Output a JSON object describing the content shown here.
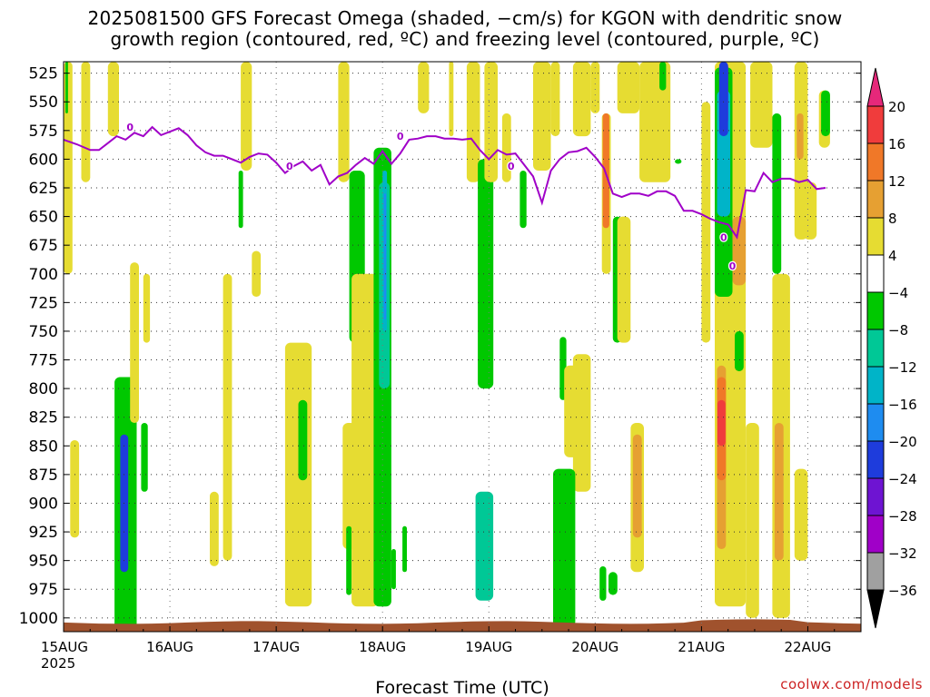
{
  "title_line1": "2025081500 GFS Forecast Omega (shaded, −cm/s) for KGON with dendritic snow",
  "title_line2": "growth region (contoured, red, ºC) and freezing level (contoured, purple, ºC)",
  "credit": "coolwx.com/models",
  "chart_data": {
    "type": "heatmap",
    "title": "2025081500 GFS Forecast Omega (shaded, −cm/s) for KGON with dendritic snow growth region (contoured, red, ºC) and freezing level (contoured, purple, ºC)",
    "xlabel": "Forecast Time (UTC)",
    "ylabel": "",
    "x_ticks": [
      "15AUG\n2025",
      "16AUG",
      "17AUG",
      "18AUG",
      "19AUG",
      "20AUG",
      "21AUG",
      "22AUG"
    ],
    "x_tick_labels": [
      "15AUG",
      "16AUG",
      "17AUG",
      "18AUG",
      "19AUG",
      "20AUG",
      "21AUG",
      "22AUG"
    ],
    "x_year_label": "2025",
    "x_range_hours": [
      0,
      180
    ],
    "y_ticks": [
      525,
      550,
      575,
      600,
      625,
      650,
      675,
      700,
      725,
      750,
      775,
      800,
      825,
      850,
      875,
      900,
      925,
      950,
      975,
      1000
    ],
    "y_range_hPa": [
      515,
      1012
    ],
    "grid": true,
    "colorbar": {
      "labels": [
        "20",
        "16",
        "12",
        "8",
        "4",
        "−4",
        "−8",
        "−12",
        "−16",
        "−20",
        "−24",
        "−28",
        "−32",
        "−36"
      ],
      "bins": [
        {
          "from": 16,
          "to": 20,
          "color": "#f03c3c"
        },
        {
          "from": 12,
          "to": 16,
          "color": "#f07828"
        },
        {
          "from": 8,
          "to": 12,
          "color": "#e6a032"
        },
        {
          "from": 4,
          "to": 8,
          "color": "#e6dc32"
        },
        {
          "from": -4,
          "to": 4,
          "color": "#ffffff"
        },
        {
          "from": -8,
          "to": -4,
          "color": "#00c800"
        },
        {
          "from": -12,
          "to": -8,
          "color": "#00c896"
        },
        {
          "from": -16,
          "to": -12,
          "color": "#00b4c8"
        },
        {
          "from": -20,
          "to": -16,
          "color": "#1e8cf0"
        },
        {
          "from": -24,
          "to": -20,
          "color": "#1e3cdc"
        },
        {
          "from": -28,
          "to": -24,
          "color": "#6e14d2"
        },
        {
          "from": -32,
          "to": -28,
          "color": "#a000c8"
        },
        {
          "from": -36,
          "to": -32,
          "color": "#a0a0a0"
        }
      ],
      "top_arrow_color": "#e6287a",
      "bottom_arrow_color": "#000000"
    },
    "freezing_level": {
      "color": "#a000c8",
      "label": "0",
      "points": [
        [
          0,
          583
        ],
        [
          3,
          587
        ],
        [
          6,
          592
        ],
        [
          8,
          592
        ],
        [
          10,
          586
        ],
        [
          12,
          580
        ],
        [
          14,
          583
        ],
        [
          16,
          577
        ],
        [
          18,
          580
        ],
        [
          20,
          572
        ],
        [
          22,
          579
        ],
        [
          24,
          576
        ],
        [
          26,
          573
        ],
        [
          28,
          579
        ],
        [
          30,
          588
        ],
        [
          32,
          594
        ],
        [
          34,
          597
        ],
        [
          36,
          597
        ],
        [
          38,
          600
        ],
        [
          40,
          603
        ],
        [
          42,
          598
        ],
        [
          44,
          595
        ],
        [
          46,
          596
        ],
        [
          48,
          603
        ],
        [
          50,
          612
        ],
        [
          52,
          606
        ],
        [
          54,
          602
        ],
        [
          56,
          610
        ],
        [
          58,
          605
        ],
        [
          60,
          622
        ],
        [
          62,
          615
        ],
        [
          64,
          612
        ],
        [
          66,
          605
        ],
        [
          68,
          599
        ],
        [
          70,
          604
        ],
        [
          72,
          593
        ],
        [
          74,
          604
        ],
        [
          76,
          595
        ],
        [
          78,
          583
        ],
        [
          80,
          582
        ],
        [
          82,
          580
        ],
        [
          84,
          580
        ],
        [
          86,
          582
        ],
        [
          88,
          582
        ],
        [
          90,
          583
        ],
        [
          92,
          582
        ],
        [
          94,
          592
        ],
        [
          96,
          600
        ],
        [
          98,
          592
        ],
        [
          100,
          596
        ],
        [
          102,
          595
        ],
        [
          104,
          605
        ],
        [
          106,
          615
        ],
        [
          108,
          638
        ],
        [
          110,
          610
        ],
        [
          112,
          600
        ],
        [
          114,
          594
        ],
        [
          116,
          593
        ],
        [
          118,
          590
        ],
        [
          120,
          598
        ],
        [
          122,
          608
        ],
        [
          124,
          630
        ],
        [
          126,
          633
        ],
        [
          128,
          630
        ],
        [
          130,
          630
        ],
        [
          132,
          632
        ],
        [
          134,
          628
        ],
        [
          136,
          628
        ],
        [
          138,
          632
        ],
        [
          140,
          645
        ],
        [
          142,
          645
        ],
        [
          144,
          648
        ],
        [
          146,
          652
        ],
        [
          148,
          655
        ],
        [
          150,
          657
        ],
        [
          152,
          668
        ],
        [
          154,
          627
        ],
        [
          156,
          628
        ],
        [
          158,
          612
        ],
        [
          160,
          620
        ],
        [
          162,
          617
        ],
        [
          164,
          617
        ],
        [
          166,
          620
        ],
        [
          168,
          618
        ],
        [
          170,
          626
        ],
        [
          172,
          625
        ]
      ],
      "label_positions": [
        [
          15,
          572
        ],
        [
          51,
          606
        ],
        [
          76,
          580
        ],
        [
          101,
          606
        ],
        [
          149,
          668
        ],
        [
          151,
          693
        ]
      ]
    },
    "omega_regions": [
      {
        "value": 6,
        "color": "#e6dc32",
        "t0": 0.0,
        "t1": 2.0,
        "p0": 515,
        "p1": 700
      },
      {
        "value": 6,
        "color": "#e6dc32",
        "t0": 1.5,
        "t1": 3.5,
        "p0": 845,
        "p1": 930
      },
      {
        "value": -6,
        "color": "#00c800",
        "t0": 0.4,
        "t1": 1.0,
        "p0": 515,
        "p1": 560
      },
      {
        "value": 6,
        "color": "#e6dc32",
        "t0": 4.0,
        "t1": 6.0,
        "p0": 515,
        "p1": 620
      },
      {
        "value": 6,
        "color": "#e6dc32",
        "t0": 10.0,
        "t1": 12.5,
        "p0": 515,
        "p1": 580
      },
      {
        "value": -10,
        "color": "#00c896",
        "t0": 12.0,
        "t1": 15.5,
        "p0": 810,
        "p1": 1005
      },
      {
        "value": -6,
        "color": "#00c800",
        "t0": 11.5,
        "t1": 16.5,
        "p0": 790,
        "p1": 1010
      },
      {
        "value": -28,
        "color": "#a000c8",
        "t0": 13.0,
        "t1": 14.3,
        "p0": 860,
        "p1": 950
      },
      {
        "value": -22,
        "color": "#1e3cdc",
        "t0": 12.8,
        "t1": 14.6,
        "p0": 840,
        "p1": 960
      },
      {
        "value": 6,
        "color": "#e6dc32",
        "t0": 15.0,
        "t1": 17.0,
        "p0": 690,
        "p1": 830
      },
      {
        "value": -6,
        "color": "#00c800",
        "t0": 17.5,
        "t1": 19.0,
        "p0": 830,
        "p1": 890
      },
      {
        "value": 6,
        "color": "#e6dc32",
        "t0": 18.0,
        "t1": 19.5,
        "p0": 700,
        "p1": 760
      },
      {
        "value": 6,
        "color": "#e6dc32",
        "t0": 33.0,
        "t1": 35.0,
        "p0": 890,
        "p1": 955
      },
      {
        "value": 6,
        "color": "#e6dc32",
        "t0": 36.0,
        "t1": 38.0,
        "p0": 700,
        "p1": 950
      },
      {
        "value": -6,
        "color": "#00c800",
        "t0": 39.5,
        "t1": 40.5,
        "p0": 610,
        "p1": 660
      },
      {
        "value": 6,
        "color": "#e6dc32",
        "t0": 40.0,
        "t1": 42.5,
        "p0": 515,
        "p1": 610
      },
      {
        "value": 6,
        "color": "#e6dc32",
        "t0": 42.5,
        "t1": 44.5,
        "p0": 680,
        "p1": 720
      },
      {
        "value": 6,
        "color": "#e6dc32",
        "t0": 50.0,
        "t1": 56.0,
        "p0": 760,
        "p1": 990
      },
      {
        "value": -6,
        "color": "#00c800",
        "t0": 53.0,
        "t1": 55.0,
        "p0": 810,
        "p1": 880
      },
      {
        "value": 6,
        "color": "#e6dc32",
        "t0": 62.0,
        "t1": 64.5,
        "p0": 515,
        "p1": 620
      },
      {
        "value": 6,
        "color": "#e6dc32",
        "t0": 63.0,
        "t1": 66.0,
        "p0": 830,
        "p1": 940
      },
      {
        "value": -6,
        "color": "#00c800",
        "t0": 63.8,
        "t1": 65.0,
        "p0": 920,
        "p1": 980
      },
      {
        "value": -6,
        "color": "#00c800",
        "t0": 64.5,
        "t1": 68.0,
        "p0": 610,
        "p1": 760
      },
      {
        "value": 6,
        "color": "#e6dc32",
        "t0": 65.0,
        "t1": 71.0,
        "p0": 700,
        "p1": 990
      },
      {
        "value": -6,
        "color": "#00c800",
        "t0": 70.0,
        "t1": 74.0,
        "p0": 590,
        "p1": 990
      },
      {
        "value": -12,
        "color": "#00c896",
        "t0": 71.2,
        "t1": 73.6,
        "p0": 620,
        "p1": 800
      },
      {
        "value": -16,
        "color": "#00b4c8",
        "t0": 72.0,
        "t1": 73.0,
        "p0": 610,
        "p1": 750
      },
      {
        "value": -20,
        "color": "#1e8cf0",
        "t0": 72.3,
        "t1": 72.8,
        "p0": 630,
        "p1": 740
      },
      {
        "value": -6,
        "color": "#00c800",
        "t0": 74.0,
        "t1": 75.0,
        "p0": 940,
        "p1": 975
      },
      {
        "value": -6,
        "color": "#00c800",
        "t0": 76.5,
        "t1": 77.5,
        "p0": 920,
        "p1": 960
      },
      {
        "value": 6,
        "color": "#e6dc32",
        "t0": 80.0,
        "t1": 82.5,
        "p0": 515,
        "p1": 560
      },
      {
        "value": 6,
        "color": "#e6dc32",
        "t0": 87.0,
        "t1": 88.0,
        "p0": 515,
        "p1": 580
      },
      {
        "value": 6,
        "color": "#e6dc32",
        "t0": 91.0,
        "t1": 94.0,
        "p0": 515,
        "p1": 620
      },
      {
        "value": -6,
        "color": "#00c800",
        "t0": 93.5,
        "t1": 97.0,
        "p0": 600,
        "p1": 800
      },
      {
        "value": -10,
        "color": "#00c896",
        "t0": 93.0,
        "t1": 97.0,
        "p0": 890,
        "p1": 985
      },
      {
        "value": 6,
        "color": "#e6dc32",
        "t0": 95.0,
        "t1": 98.0,
        "p0": 515,
        "p1": 620
      },
      {
        "value": 6,
        "color": "#e6dc32",
        "t0": 99.0,
        "t1": 101.0,
        "p0": 560,
        "p1": 620
      },
      {
        "value": -6,
        "color": "#00c800",
        "t0": 103.0,
        "t1": 104.5,
        "p0": 610,
        "p1": 660
      },
      {
        "value": 6,
        "color": "#e6dc32",
        "t0": 106.0,
        "t1": 110.0,
        "p0": 515,
        "p1": 610
      },
      {
        "value": 6,
        "color": "#e6dc32",
        "t0": 110.0,
        "t1": 112.0,
        "p0": 515,
        "p1": 580
      },
      {
        "value": -6,
        "color": "#00c800",
        "t0": 112.0,
        "t1": 113.5,
        "p0": 755,
        "p1": 810
      },
      {
        "value": 6,
        "color": "#e6dc32",
        "t0": 113.0,
        "t1": 117.0,
        "p0": 780,
        "p1": 860
      },
      {
        "value": 6,
        "color": "#e6dc32",
        "t0": 115.0,
        "t1": 119.0,
        "p0": 770,
        "p1": 890
      },
      {
        "value": -10,
        "color": "#00c896",
        "t0": 111.0,
        "t1": 115.0,
        "p0": 885,
        "p1": 1000
      },
      {
        "value": -6,
        "color": "#00c800",
        "t0": 110.5,
        "t1": 115.5,
        "p0": 870,
        "p1": 1008
      },
      {
        "value": 6,
        "color": "#e6dc32",
        "t0": 115.0,
        "t1": 119.0,
        "p0": 515,
        "p1": 580
      },
      {
        "value": 6,
        "color": "#e6dc32",
        "t0": 119.0,
        "t1": 121.0,
        "p0": 515,
        "p1": 560
      },
      {
        "value": 6,
        "color": "#e6dc32",
        "t0": 121.5,
        "t1": 123.5,
        "p0": 560,
        "p1": 700
      },
      {
        "value": 10,
        "color": "#e6a032",
        "t0": 121.8,
        "t1": 123.0,
        "p0": 590,
        "p1": 640
      },
      {
        "value": 14,
        "color": "#f07828",
        "t0": 121.7,
        "t1": 123.2,
        "p0": 560,
        "p1": 660
      },
      {
        "value": -6,
        "color": "#00c800",
        "t0": 121.0,
        "t1": 122.5,
        "p0": 955,
        "p1": 985
      },
      {
        "value": -6,
        "color": "#00c800",
        "t0": 123.0,
        "t1": 125.0,
        "p0": 960,
        "p1": 980
      },
      {
        "value": -6,
        "color": "#00c800",
        "t0": 124.0,
        "t1": 126.0,
        "p0": 650,
        "p1": 760
      },
      {
        "value": 6,
        "color": "#e6dc32",
        "t0": 125.0,
        "t1": 128.0,
        "p0": 650,
        "p1": 760
      },
      {
        "value": 6,
        "color": "#e6dc32",
        "t0": 128.0,
        "t1": 131.0,
        "p0": 830,
        "p1": 960
      },
      {
        "value": 10,
        "color": "#e6a032",
        "t0": 128.5,
        "t1": 130.5,
        "p0": 840,
        "p1": 930
      },
      {
        "value": 6,
        "color": "#e6dc32",
        "t0": 125.0,
        "t1": 130.0,
        "p0": 515,
        "p1": 560
      },
      {
        "value": 6,
        "color": "#e6dc32",
        "t0": 130.0,
        "t1": 137.0,
        "p0": 515,
        "p1": 620
      },
      {
        "value": -6,
        "color": "#00c800",
        "t0": 134.5,
        "t1": 136.0,
        "p0": 515,
        "p1": 540
      },
      {
        "value": -6,
        "color": "#00c800",
        "t0": 138.0,
        "t1": 139.5,
        "p0": 600,
        "p1": 604
      },
      {
        "value": 6,
        "color": "#e6dc32",
        "t0": 144.0,
        "t1": 146.0,
        "p0": 550,
        "p1": 760
      },
      {
        "value": 6,
        "color": "#e6dc32",
        "t0": 147.0,
        "t1": 154.0,
        "p0": 515,
        "p1": 990
      },
      {
        "value": 10,
        "color": "#e6a032",
        "t0": 147.5,
        "t1": 149.5,
        "p0": 780,
        "p1": 940
      },
      {
        "value": 14,
        "color": "#f07828",
        "t0": 147.5,
        "t1": 149.5,
        "p0": 790,
        "p1": 880
      },
      {
        "value": 18,
        "color": "#f03c3c",
        "t0": 147.6,
        "t1": 149.4,
        "p0": 810,
        "p1": 850
      },
      {
        "value": -6,
        "color": "#00c800",
        "t0": 147.0,
        "t1": 151.0,
        "p0": 520,
        "p1": 720
      },
      {
        "value": -16,
        "color": "#00b4c8",
        "t0": 147.5,
        "t1": 150.5,
        "p0": 540,
        "p1": 650
      },
      {
        "value": -28,
        "color": "#a000c8",
        "t0": 148.0,
        "t1": 150.0,
        "p0": 515,
        "p1": 570
      },
      {
        "value": -22,
        "color": "#1e3cdc",
        "t0": 148.0,
        "t1": 150.0,
        "p0": 515,
        "p1": 580
      },
      {
        "value": -6,
        "color": "#00c800",
        "t0": 151.5,
        "t1": 153.5,
        "p0": 750,
        "p1": 785
      },
      {
        "value": 10,
        "color": "#e6a032",
        "t0": 151.0,
        "t1": 154.0,
        "p0": 650,
        "p1": 710
      },
      {
        "value": 6,
        "color": "#e6dc32",
        "t0": 154.0,
        "t1": 157.0,
        "p0": 830,
        "p1": 1000
      },
      {
        "value": 6,
        "color": "#e6dc32",
        "t0": 155.0,
        "t1": 160.0,
        "p0": 515,
        "p1": 590
      },
      {
        "value": 6,
        "color": "#e6dc32",
        "t0": 160.0,
        "t1": 164.0,
        "p0": 700,
        "p1": 1000
      },
      {
        "value": 10,
        "color": "#e6a032",
        "t0": 160.5,
        "t1": 162.5,
        "p0": 830,
        "p1": 950
      },
      {
        "value": 6,
        "color": "#e6dc32",
        "t0": 165.0,
        "t1": 168.0,
        "p0": 515,
        "p1": 670
      },
      {
        "value": 10,
        "color": "#e6a032",
        "t0": 165.5,
        "t1": 167.0,
        "p0": 560,
        "p1": 600
      },
      {
        "value": -6,
        "color": "#00c800",
        "t0": 160.0,
        "t1": 162.0,
        "p0": 560,
        "p1": 700
      },
      {
        "value": 6,
        "color": "#e6dc32",
        "t0": 167.0,
        "t1": 170.0,
        "p0": 620,
        "p1": 670
      },
      {
        "value": 6,
        "color": "#e6dc32",
        "t0": 165.0,
        "t1": 168.0,
        "p0": 870,
        "p1": 950
      },
      {
        "value": 6,
        "color": "#e6dc32",
        "t0": 170.5,
        "t1": 173.0,
        "p0": 540,
        "p1": 590
      },
      {
        "value": -6,
        "color": "#00c800",
        "t0": 171.0,
        "t1": 173.0,
        "p0": 540,
        "p1": 580
      }
    ],
    "terrain_color": "#a0522d",
    "terrain_top_hPa": 1004
  }
}
